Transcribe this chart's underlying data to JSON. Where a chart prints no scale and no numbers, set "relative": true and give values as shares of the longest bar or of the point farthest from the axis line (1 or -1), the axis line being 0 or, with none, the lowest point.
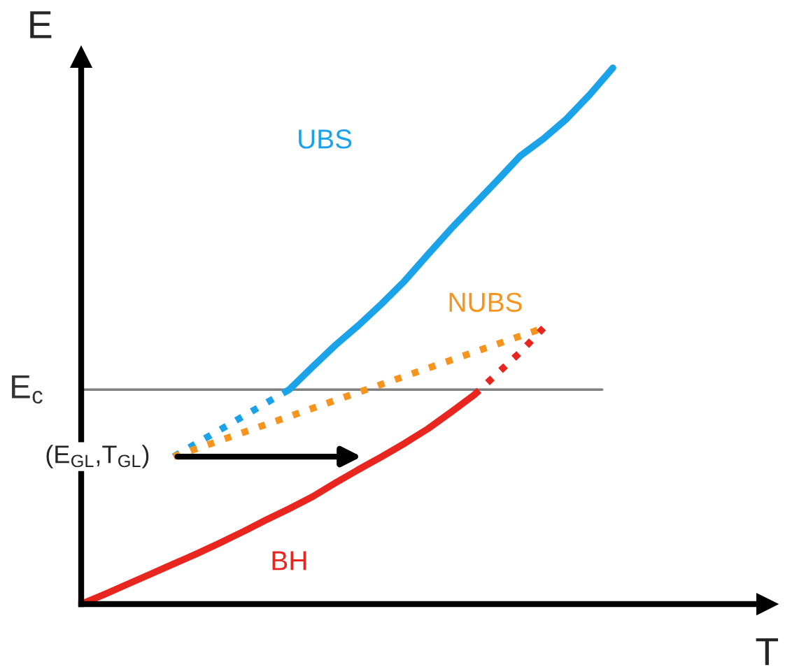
{
  "chart_data": {
    "type": "line",
    "relative": true,
    "xlabel": "T",
    "ylabel": "E",
    "legend": false,
    "categories": [
      null,
      null,
      null,
      null,
      null,
      null,
      null,
      null,
      null,
      null,
      null,
      null,
      null,
      null,
      null,
      null,
      null,
      null,
      null,
      null,
      null,
      null,
      null,
      null
    ],
    "series": [
      {
        "name": "UBS",
        "color": "#1aa3e8",
        "line_style": "solid",
        "values": [
          null,
          null,
          null,
          null,
          null,
          null,
          null,
          null,
          null,
          0.4,
          0.442,
          0.483,
          0.52,
          0.56,
          0.603,
          0.652,
          0.7,
          0.745,
          0.79,
          0.836,
          0.868,
          0.905,
          0.95,
          1.0
        ]
      },
      {
        "color": "#1aa3e8",
        "line_style": "dotted",
        "values": [
          null,
          null,
          null,
          null,
          0.275,
          0.3,
          0.325,
          0.35,
          0.375,
          0.4,
          null,
          null,
          null,
          null,
          null,
          null,
          null,
          null,
          null,
          null,
          null,
          null,
          null,
          null
        ]
      },
      {
        "name": "NUBS",
        "color": "#f7941d",
        "line_style": "dotted",
        "values": [
          null,
          null,
          null,
          null,
          0.275,
          0.29,
          0.305,
          0.32,
          0.335,
          0.35,
          0.365,
          0.38,
          0.395,
          0.41,
          0.425,
          0.44,
          0.455,
          0.47,
          0.485,
          0.5,
          0.515,
          null,
          null,
          null
        ]
      },
      {
        "name": "BH",
        "color": "#e8251f",
        "line_style": "solid",
        "values": [
          0.0,
          0.018,
          0.037,
          0.056,
          0.075,
          0.094,
          0.114,
          0.135,
          0.157,
          0.178,
          0.2,
          0.226,
          0.251,
          0.275,
          0.3,
          0.327,
          0.358,
          0.39,
          null,
          null,
          null,
          null,
          null,
          null
        ]
      },
      {
        "color": "#e8251f",
        "line_style": "dotted",
        "values": [
          null,
          null,
          null,
          null,
          null,
          null,
          null,
          null,
          null,
          null,
          null,
          null,
          null,
          null,
          null,
          null,
          null,
          0.39,
          0.43,
          0.47,
          0.515,
          null,
          null,
          null
        ]
      }
    ],
    "ref_lines": [
      {
        "axis": "y",
        "value": 0.4,
        "label": "E$_{c}$",
        "color": "#7f7f7f"
      }
    ],
    "annotations": [
      "(E$_{GL}$,T$_{GL}$)"
    ]
  }
}
